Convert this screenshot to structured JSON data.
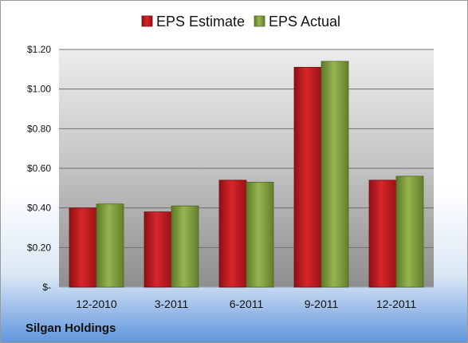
{
  "chart_data": {
    "type": "bar",
    "categories": [
      "12-2010",
      "3-2011",
      "6-2011",
      "9-2011",
      "12-2011"
    ],
    "series": [
      {
        "name": "EPS Estimate",
        "values": [
          0.4,
          0.38,
          0.54,
          1.11,
          0.54
        ],
        "color": "#c0161c"
      },
      {
        "name": "EPS Actual",
        "values": [
          0.42,
          0.41,
          0.53,
          1.14,
          0.56
        ],
        "color": "#7a9a3a"
      }
    ],
    "ylim": [
      0,
      1.2
    ],
    "yticks": [
      0,
      0.2,
      0.4,
      0.6,
      0.8,
      1.0,
      1.2
    ],
    "ytick_labels": [
      "$-",
      "$0.20",
      "$0.40",
      "$0.60",
      "$0.80",
      "$1.00",
      "$1.20"
    ],
    "grid": true,
    "legend_position": "top"
  },
  "footer": {
    "company": "Silgan Holdings"
  }
}
